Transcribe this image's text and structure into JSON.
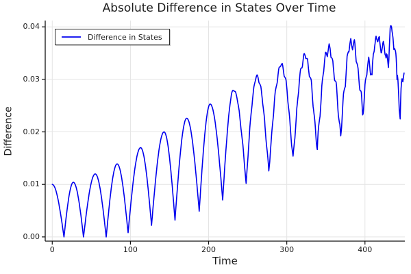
{
  "chart_data": {
    "type": "line",
    "title": "Absolute Difference in States Over Time",
    "xlabel": "Time",
    "ylabel": "Difference",
    "grid": true,
    "legend": {
      "position": "top-left",
      "entries": [
        {
          "label": "Difference in States",
          "color": "#0000ee"
        }
      ]
    },
    "xlim": [
      -9,
      451
    ],
    "ylim": [
      -0.0008,
      0.0412
    ],
    "x_ticks": [
      {
        "v": 0,
        "label": "0"
      },
      {
        "v": 100,
        "label": "100"
      },
      {
        "v": 200,
        "label": "200"
      },
      {
        "v": 300,
        "label": "300"
      },
      {
        "v": 400,
        "label": "400"
      }
    ],
    "y_ticks": [
      {
        "v": 0.0,
        "label": "0.00"
      },
      {
        "v": 0.01,
        "label": "0.01"
      },
      {
        "v": 0.02,
        "label": "0.02"
      },
      {
        "v": 0.03,
        "label": "0.03"
      },
      {
        "v": 0.04,
        "label": "0.04"
      }
    ],
    "series": [
      {
        "name": "Difference in States",
        "color": "#0000ee",
        "line_width": 1.6,
        "control_points": [
          [
            0,
            0.01
          ],
          [
            15,
            0.0
          ],
          [
            27,
            0.0104
          ],
          [
            40,
            0.0
          ],
          [
            55,
            0.012
          ],
          [
            69,
            0.0
          ],
          [
            83,
            0.0139
          ],
          [
            97,
            0.0008
          ],
          [
            113,
            0.017
          ],
          [
            127,
            0.0022
          ],
          [
            143,
            0.02
          ],
          [
            157,
            0.0032
          ],
          [
            172,
            0.0226
          ],
          [
            188,
            0.0049
          ],
          [
            202,
            0.0253
          ],
          [
            218,
            0.0071
          ],
          [
            232,
            0.028
          ],
          [
            248,
            0.0101
          ],
          [
            262,
            0.0305
          ],
          [
            277,
            0.0123
          ],
          [
            293,
            0.0327
          ],
          [
            308,
            0.0145
          ],
          [
            323,
            0.0344
          ],
          [
            339,
            0.0165
          ],
          [
            353,
            0.0358
          ],
          [
            369,
            0.0192
          ],
          [
            383,
            0.0371
          ],
          [
            397,
            0.0235
          ],
          [
            406,
            0.0332
          ],
          [
            409,
            0.03
          ],
          [
            413,
            0.0368
          ],
          [
            416,
            0.0384
          ],
          [
            419,
            0.0355
          ],
          [
            424,
            0.0367
          ],
          [
            427,
            0.033
          ],
          [
            430,
            0.0341
          ],
          [
            434,
            0.0399
          ],
          [
            437,
            0.0345
          ],
          [
            439,
            0.0371
          ],
          [
            441,
            0.029
          ],
          [
            445,
            0.0228
          ],
          [
            448,
            0.031
          ],
          [
            450,
            0.03
          ]
        ],
        "noise": {
          "t_start": 205,
          "t_end": 450,
          "max_amplitude": 0.0024,
          "periods": [
            4.6,
            7.9
          ],
          "weights": [
            0.62,
            0.38
          ]
        }
      }
    ],
    "colors": {
      "grid": "#e4e4e4",
      "spine": "#111111",
      "text": "#1c1c1c",
      "background": "#ffffff"
    }
  }
}
